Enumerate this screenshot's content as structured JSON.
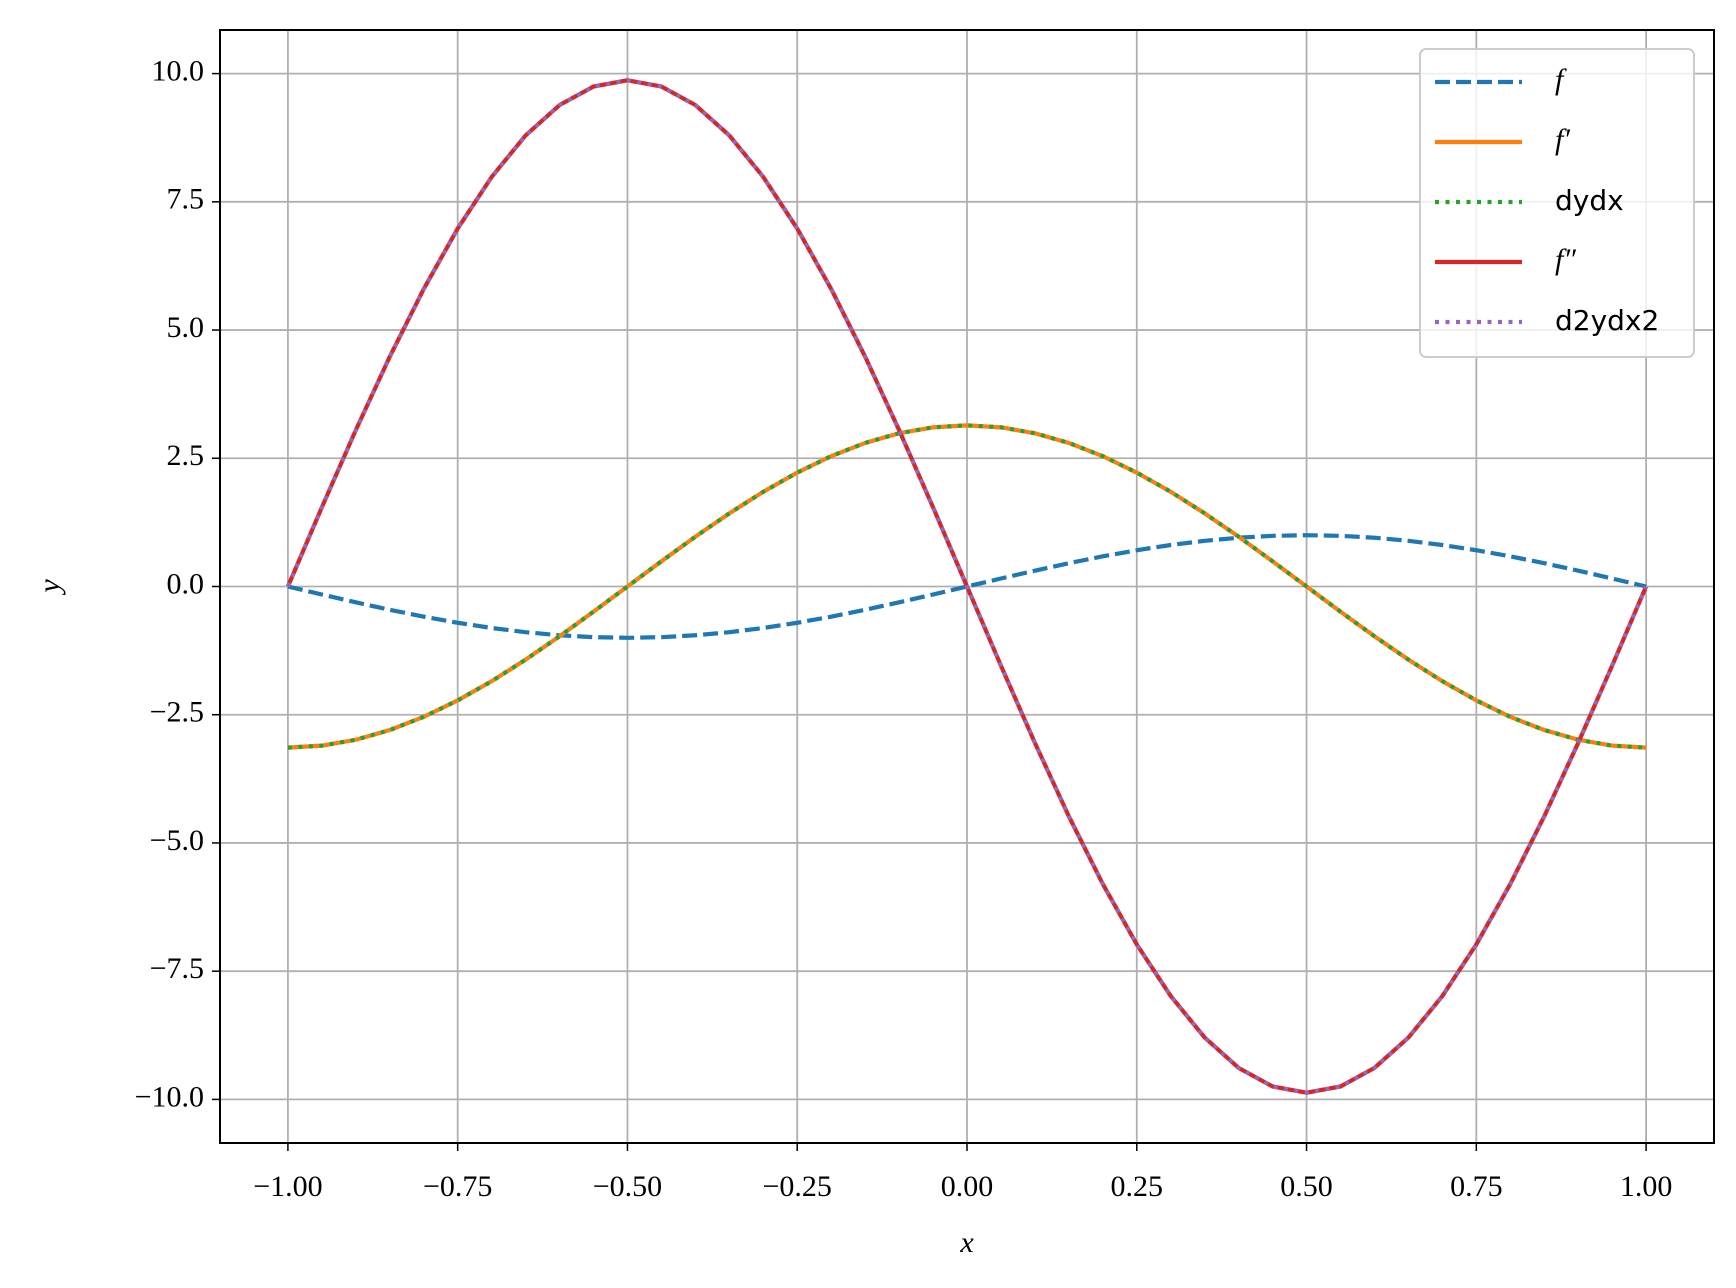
{
  "chart_data": {
    "type": "line",
    "x_label": "x",
    "y_label": "y",
    "x": [
      -1,
      -0.95,
      -0.9,
      -0.85,
      -0.8,
      -0.75,
      -0.7,
      -0.65,
      -0.6,
      -0.55,
      -0.5,
      -0.45,
      -0.4,
      -0.35,
      -0.3,
      -0.25,
      -0.2,
      -0.15,
      -0.1,
      -0.05,
      0,
      0.05,
      0.1,
      0.15,
      0.2,
      0.25,
      0.3,
      0.35,
      0.4,
      0.45,
      0.5,
      0.55,
      0.6,
      0.65,
      0.7,
      0.75,
      0.8,
      0.85,
      0.9,
      0.95,
      1
    ],
    "series": [
      {
        "name": "f",
        "color": "#1f77b4",
        "linestyle": "dashed",
        "italic": true,
        "values": [
          0,
          -0.156,
          -0.309,
          -0.454,
          -0.588,
          -0.707,
          -0.809,
          -0.891,
          -0.951,
          -0.988,
          -1,
          -0.988,
          -0.951,
          -0.891,
          -0.809,
          -0.707,
          -0.588,
          -0.454,
          -0.309,
          -0.156,
          0,
          0.156,
          0.309,
          0.454,
          0.588,
          0.707,
          0.809,
          0.891,
          0.951,
          0.988,
          1,
          0.988,
          0.951,
          0.891,
          0.809,
          0.707,
          0.588,
          0.454,
          0.309,
          0.156,
          0
        ]
      },
      {
        "name": "f′",
        "color": "#ff7f0e",
        "linestyle": "solid",
        "italic": true,
        "values": [
          -3.142,
          -3.103,
          -2.988,
          -2.799,
          -2.542,
          -2.221,
          -1.847,
          -1.426,
          -0.971,
          -0.491,
          0,
          0.491,
          0.971,
          1.426,
          1.847,
          2.221,
          2.542,
          2.799,
          2.988,
          3.103,
          3.142,
          3.103,
          2.988,
          2.799,
          2.542,
          2.221,
          1.847,
          1.426,
          0.971,
          0.491,
          0,
          -0.491,
          -0.971,
          -1.426,
          -1.847,
          -2.221,
          -2.542,
          -2.799,
          -2.988,
          -3.103,
          -3.142
        ]
      },
      {
        "name": "dydx",
        "color": "#2ca02c",
        "linestyle": "dotted",
        "italic": false,
        "values": [
          -3.142,
          -3.103,
          -2.988,
          -2.799,
          -2.542,
          -2.221,
          -1.847,
          -1.426,
          -0.971,
          -0.491,
          0,
          0.491,
          0.971,
          1.426,
          1.847,
          2.221,
          2.542,
          2.799,
          2.988,
          3.103,
          3.142,
          3.103,
          2.988,
          2.799,
          2.542,
          2.221,
          1.847,
          1.426,
          0.971,
          0.491,
          0,
          -0.491,
          -0.971,
          -1.426,
          -1.847,
          -2.221,
          -2.542,
          -2.799,
          -2.988,
          -3.103,
          -3.142
        ]
      },
      {
        "name": "f″",
        "color": "#d62728",
        "linestyle": "solid",
        "italic": true,
        "values": [
          0,
          1.544,
          3.05,
          4.481,
          5.801,
          6.979,
          7.985,
          8.794,
          9.387,
          9.748,
          9.87,
          9.748,
          9.387,
          8.794,
          7.985,
          6.979,
          5.801,
          4.481,
          3.05,
          1.544,
          0,
          -1.544,
          -3.05,
          -4.481,
          -5.801,
          -6.979,
          -7.985,
          -8.794,
          -9.387,
          -9.748,
          -9.87,
          -9.748,
          -9.387,
          -8.794,
          -7.985,
          -6.979,
          -5.801,
          -4.481,
          -3.05,
          -1.544,
          0
        ]
      },
      {
        "name": "d2ydx2",
        "color": "#9467bd",
        "linestyle": "dotted",
        "italic": false,
        "values": [
          0,
          1.544,
          3.05,
          4.481,
          5.801,
          6.979,
          7.985,
          8.794,
          9.387,
          9.748,
          9.87,
          9.748,
          9.387,
          8.794,
          7.985,
          6.979,
          5.801,
          4.481,
          3.05,
          1.544,
          0,
          -1.544,
          -3.05,
          -4.481,
          -5.801,
          -6.979,
          -7.985,
          -8.794,
          -9.387,
          -9.748,
          -9.87,
          -9.748,
          -9.387,
          -8.794,
          -7.985,
          -6.979,
          -5.801,
          -4.481,
          -3.05,
          -1.544,
          0
        ]
      }
    ],
    "xlim": [
      -1.1,
      1.1
    ],
    "ylim": [
      -10.85,
      10.85
    ],
    "xticks": [
      {
        "value": -1,
        "label": "−1.00"
      },
      {
        "value": -0.75,
        "label": "−0.75"
      },
      {
        "value": -0.5,
        "label": "−0.50"
      },
      {
        "value": -0.25,
        "label": "−0.25"
      },
      {
        "value": 0,
        "label": "0.00"
      },
      {
        "value": 0.25,
        "label": "0.25"
      },
      {
        "value": 0.5,
        "label": "0.50"
      },
      {
        "value": 0.75,
        "label": "0.75"
      },
      {
        "value": 1,
        "label": "1.00"
      }
    ],
    "yticks": [
      {
        "value": -10,
        "label": "−10.0"
      },
      {
        "value": -7.5,
        "label": "−7.5"
      },
      {
        "value": -5,
        "label": "−5.0"
      },
      {
        "value": -2.5,
        "label": "−2.5"
      },
      {
        "value": 0,
        "label": "0.0"
      },
      2.5,
      {
        "value": 5,
        "label": "5.0"
      },
      7.5,
      {
        "value": 10,
        "label": "10.0"
      }
    ],
    "grid": true,
    "legend": "upper right"
  }
}
